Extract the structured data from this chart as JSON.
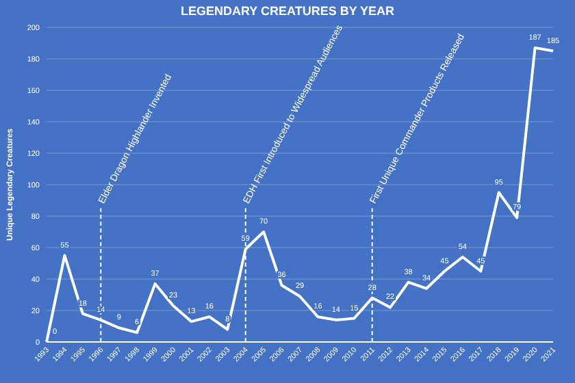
{
  "chart_data": {
    "type": "line",
    "title": "LEGENDARY CREATURES BY YEAR",
    "ylabel": "Unique Legendary Creatures",
    "categories": [
      "1993",
      "1994",
      "1995",
      "1996",
      "1997",
      "1998",
      "1999",
      "2000",
      "2001",
      "2002",
      "2003",
      "2004",
      "2005",
      "2006",
      "2007",
      "2008",
      "2009",
      "2010",
      "2011",
      "2012",
      "2013",
      "2014",
      "2015",
      "2016",
      "2017",
      "2018",
      "2019",
      "2020",
      "2021"
    ],
    "series": [
      {
        "color": "#ffffff",
        "values": [
          0,
          55,
          18,
          14,
          9,
          6,
          37,
          23,
          13,
          16,
          8,
          59,
          70,
          36,
          29,
          16,
          14,
          15,
          28,
          22,
          38,
          34,
          45,
          54,
          45,
          95,
          79,
          187,
          185
        ]
      }
    ],
    "ylim": [
      0,
      200
    ],
    "yticks": [
      0,
      20,
      40,
      60,
      80,
      100,
      120,
      140,
      160,
      180,
      200
    ],
    "grid": "y",
    "data_labels": true,
    "marker": "none",
    "line_style": "solid",
    "ref_lines": [
      {
        "axis": "x",
        "value": "1996",
        "label": "Elder Dragon Highlander Invented",
        "color": "#ffffff",
        "line_style": "dashed"
      },
      {
        "axis": "x",
        "value": "2004",
        "label": "EDH First Introduced to Widespread Audiences",
        "color": "#ffffff",
        "line_style": "dashed"
      },
      {
        "axis": "x",
        "value": "2011",
        "label": "First Unique Commander Products Released",
        "color": "#ffffff",
        "line_style": "dashed"
      }
    ]
  }
}
